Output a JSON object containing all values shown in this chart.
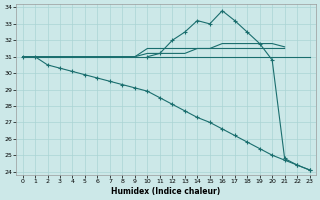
{
  "xlabel": "Humidex (Indice chaleur)",
  "xlim": [
    -0.5,
    23.5
  ],
  "ylim": [
    23.8,
    34.2
  ],
  "xticks": [
    0,
    1,
    2,
    3,
    4,
    5,
    6,
    7,
    8,
    9,
    10,
    11,
    12,
    13,
    14,
    15,
    16,
    17,
    18,
    19,
    20,
    21,
    22,
    23
  ],
  "yticks": [
    24,
    25,
    26,
    27,
    28,
    29,
    30,
    31,
    32,
    33,
    34
  ],
  "bg_color": "#cce8e8",
  "grid_color": "#aad4d4",
  "line_color": "#1a6e6e",
  "lines": [
    {
      "x": [
        0,
        1,
        2,
        3,
        4,
        5,
        6,
        7,
        8,
        9,
        10,
        11,
        12,
        13,
        14,
        15,
        16,
        17,
        18,
        19,
        20,
        21,
        22,
        23
      ],
      "y": [
        31,
        31,
        30.5,
        30.3,
        30.1,
        29.9,
        29.7,
        29.5,
        29.3,
        29.1,
        28.9,
        28.5,
        28.1,
        27.7,
        27.3,
        27.0,
        26.6,
        26.2,
        25.8,
        25.4,
        25.0,
        24.7,
        24.4,
        24.1
      ],
      "marker": true
    },
    {
      "x": [
        0,
        1,
        2,
        3,
        4,
        5,
        6,
        7,
        8,
        9,
        10,
        11,
        12,
        13,
        14,
        15,
        16,
        17,
        18,
        19,
        20,
        21,
        22,
        23
      ],
      "y": [
        31,
        31,
        31,
        31,
        31,
        31,
        31,
        31,
        31,
        31,
        31,
        31,
        31,
        31,
        31,
        31,
        31,
        31,
        31,
        31,
        31,
        31,
        31,
        31
      ],
      "marker": false
    },
    {
      "x": [
        0,
        1,
        2,
        3,
        4,
        5,
        6,
        7,
        8,
        9,
        10,
        11,
        12,
        13,
        14,
        15,
        16,
        17,
        18,
        19,
        20,
        21
      ],
      "y": [
        31,
        31,
        31,
        31,
        31,
        31,
        31,
        31,
        31,
        31,
        31.5,
        31.5,
        31.5,
        31.5,
        31.5,
        31.5,
        31.5,
        31.5,
        31.5,
        31.5,
        31.5,
        31.5
      ],
      "marker": false
    },
    {
      "x": [
        0,
        1,
        2,
        3,
        4,
        5,
        6,
        7,
        8,
        9,
        10,
        11,
        12,
        13,
        14,
        15,
        16,
        17,
        18,
        19,
        20,
        21
      ],
      "y": [
        31,
        31,
        31,
        31,
        31,
        31,
        31,
        31,
        31,
        31,
        31.2,
        31.2,
        31.2,
        31.2,
        31.5,
        31.5,
        31.8,
        31.8,
        31.8,
        31.8,
        31.8,
        31.6
      ],
      "marker": false
    },
    {
      "x": [
        10,
        11,
        12,
        13,
        14,
        15,
        16,
        17,
        18,
        19,
        20,
        21,
        22,
        23
      ],
      "y": [
        31,
        31.2,
        32.0,
        32.5,
        33.2,
        33.0,
        33.8,
        33.2,
        32.5,
        31.8,
        30.8,
        24.8,
        24.4,
        24.1
      ],
      "marker": true
    }
  ]
}
